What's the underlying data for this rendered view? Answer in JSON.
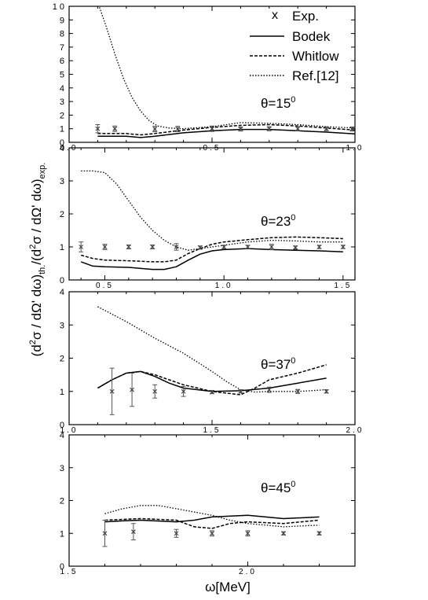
{
  "figure": {
    "ylabel": "(d²σ / dΩ′ dω)th. /(d²σ / dΩ′ dω)exp.",
    "ylabel_parts": {
      "open": "(d",
      "sup1": "2",
      "mid1": "σ / dΩ' dω)",
      "sub1": "th.",
      "mid2": "/(d",
      "sup2": "2",
      "mid3": "σ / dΩ' dω)",
      "sub2": "exp."
    },
    "xlabel": "ω[MeV]"
  },
  "legend": {
    "items": [
      {
        "label": "Exp.",
        "marker": "x",
        "style": "marker"
      },
      {
        "label": "Bodek",
        "style": "solid"
      },
      {
        "label": "Whitlow",
        "style": "dashed"
      },
      {
        "label": "Ref.[12]",
        "style": "dotted"
      }
    ]
  },
  "chart_data": [
    {
      "type": "line",
      "panel_label": "θ=15",
      "panel_label_sup": "0",
      "xlim": [
        0.0,
        1.0
      ],
      "ylim": [
        0,
        10
      ],
      "xticks": [
        0.0,
        0.5,
        1.0
      ],
      "xtick_labels": [
        "0.0",
        "0.5",
        "1.0"
      ],
      "yticks": [
        0,
        1,
        2,
        3,
        4,
        5,
        6,
        7,
        8,
        9,
        10
      ],
      "ytick_labels": [
        "0",
        "1",
        "2",
        "3",
        "4",
        "5",
        "6",
        "7",
        "8",
        "9",
        "1 0"
      ],
      "exp": {
        "x": [
          0.1,
          0.16,
          0.3,
          0.38,
          0.5,
          0.6,
          0.7,
          0.8,
          0.9,
          0.99
        ],
        "y": [
          1.0,
          1.0,
          0.98,
          0.98,
          1.0,
          0.98,
          1.0,
          1.0,
          1.0,
          0.98
        ],
        "err": [
          0.3,
          0.2,
          0.2,
          0.2,
          0.2,
          0.15,
          0.15,
          0.15,
          0.15,
          0.15
        ]
      },
      "series": [
        {
          "name": "Bodek",
          "style": "solid",
          "x": [
            0.1,
            0.2,
            0.25,
            0.3,
            0.4,
            0.5,
            0.6,
            0.7,
            0.8,
            0.9,
            1.0
          ],
          "y": [
            0.45,
            0.45,
            0.35,
            0.45,
            0.7,
            0.85,
            0.95,
            0.95,
            0.85,
            0.75,
            0.62
          ]
        },
        {
          "name": "Whitlow",
          "style": "dashed",
          "x": [
            0.1,
            0.2,
            0.25,
            0.3,
            0.4,
            0.5,
            0.6,
            0.7,
            0.8,
            0.9,
            1.0
          ],
          "y": [
            0.65,
            0.65,
            0.55,
            0.65,
            0.9,
            1.1,
            1.25,
            1.3,
            1.2,
            1.05,
            0.9
          ]
        },
        {
          "name": "Ref.[12]",
          "style": "dotted",
          "x": [
            0.1,
            0.13,
            0.16,
            0.19,
            0.22,
            0.25,
            0.28,
            0.31,
            0.35,
            0.4,
            0.5,
            0.6,
            0.7,
            0.8,
            0.9,
            1.0
          ],
          "y": [
            10.3,
            8.5,
            6.5,
            4.7,
            3.3,
            2.3,
            1.6,
            1.2,
            1.05,
            1.0,
            1.15,
            1.45,
            1.4,
            1.3,
            1.15,
            1.05
          ]
        }
      ]
    },
    {
      "type": "line",
      "panel_label": "θ=23",
      "panel_label_sup": "0",
      "xlim": [
        0.35,
        1.55
      ],
      "ylim": [
        0,
        4
      ],
      "xticks": [
        0.5,
        1.0,
        1.5
      ],
      "xtick_labels": [
        "0.5",
        "1.0",
        "1.5"
      ],
      "yticks": [
        0,
        1,
        2,
        3,
        4
      ],
      "ytick_labels": [
        "0",
        "1",
        "2",
        "3",
        "4"
      ],
      "exp": {
        "x": [
          0.4,
          0.5,
          0.6,
          0.7,
          0.8,
          0.9,
          1.0,
          1.1,
          1.2,
          1.3,
          1.4,
          1.5
        ],
        "y": [
          1.0,
          1.0,
          1.0,
          1.0,
          1.0,
          0.98,
          1.0,
          1.0,
          1.0,
          0.98,
          1.0,
          1.0
        ],
        "err": [
          0.15,
          0.08,
          0.06,
          0.06,
          0.1,
          0.05,
          0.05,
          0.05,
          0.08,
          0.05,
          0.05,
          0.05
        ]
      },
      "series": [
        {
          "name": "Bodek",
          "style": "solid",
          "x": [
            0.4,
            0.45,
            0.5,
            0.6,
            0.7,
            0.75,
            0.8,
            0.85,
            0.9,
            0.95,
            1.0,
            1.1,
            1.2,
            1.3,
            1.4,
            1.5
          ],
          "y": [
            0.55,
            0.42,
            0.4,
            0.38,
            0.32,
            0.32,
            0.4,
            0.6,
            0.78,
            0.88,
            0.92,
            0.95,
            0.92,
            0.9,
            0.88,
            0.85
          ]
        },
        {
          "name": "Whitlow",
          "style": "dashed",
          "x": [
            0.4,
            0.45,
            0.5,
            0.6,
            0.7,
            0.75,
            0.8,
            0.85,
            0.9,
            0.95,
            1.0,
            1.1,
            1.2,
            1.3,
            1.4,
            1.5
          ],
          "y": [
            0.75,
            0.65,
            0.6,
            0.58,
            0.55,
            0.55,
            0.6,
            0.8,
            0.95,
            1.08,
            1.15,
            1.22,
            1.28,
            1.3,
            1.28,
            1.25
          ]
        },
        {
          "name": "Ref.[12]",
          "style": "dotted",
          "x": [
            0.4,
            0.45,
            0.5,
            0.55,
            0.6,
            0.65,
            0.7,
            0.75,
            0.8,
            0.85,
            0.9,
            1.0,
            1.1,
            1.2,
            1.3,
            1.4,
            1.5
          ],
          "y": [
            3.3,
            3.3,
            3.25,
            2.9,
            2.4,
            1.9,
            1.5,
            1.2,
            1.0,
            0.9,
            0.95,
            1.05,
            1.15,
            1.2,
            1.18,
            1.15,
            1.15
          ]
        }
      ]
    },
    {
      "type": "line",
      "panel_label": "θ=37",
      "panel_label_sup": "0",
      "xlim": [
        1.0,
        2.0
      ],
      "ylim": [
        0,
        4
      ],
      "xticks": [
        1.0,
        1.5,
        2.0
      ],
      "xtick_labels": [
        "1.0",
        "1.5",
        "2.0"
      ],
      "yticks": [
        0,
        1,
        2,
        3,
        4
      ],
      "ytick_labels": [
        "0",
        "1",
        "2",
        "3",
        "4"
      ],
      "exp": {
        "x": [
          1.15,
          1.22,
          1.3,
          1.4,
          1.5,
          1.6,
          1.7,
          1.8,
          1.9
        ],
        "y": [
          1.0,
          1.05,
          1.0,
          1.0,
          0.98,
          1.0,
          1.05,
          1.0,
          1.0
        ],
        "err": [
          0.7,
          0.5,
          0.2,
          0.15,
          0.05,
          0.05,
          0.08,
          0.06,
          0.05
        ]
      },
      "series": [
        {
          "name": "Bodek",
          "style": "solid",
          "x": [
            1.1,
            1.15,
            1.2,
            1.25,
            1.3,
            1.35,
            1.4,
            1.5,
            1.6,
            1.7,
            1.8,
            1.9
          ],
          "y": [
            1.1,
            1.35,
            1.55,
            1.6,
            1.45,
            1.25,
            1.1,
            1.0,
            1.02,
            1.1,
            1.25,
            1.4
          ]
        },
        {
          "name": "Whitlow",
          "style": "dashed",
          "x": [
            1.1,
            1.15,
            1.2,
            1.25,
            1.3,
            1.35,
            1.4,
            1.5,
            1.6,
            1.65,
            1.7,
            1.8,
            1.9
          ],
          "y": [
            1.1,
            1.35,
            1.55,
            1.6,
            1.5,
            1.35,
            1.2,
            1.0,
            0.9,
            1.1,
            1.35,
            1.55,
            1.8
          ]
        },
        {
          "name": "Ref.[12]",
          "style": "dotted",
          "x": [
            1.1,
            1.2,
            1.3,
            1.4,
            1.5,
            1.55,
            1.6,
            1.65,
            1.7,
            1.8,
            1.9
          ],
          "y": [
            3.55,
            3.1,
            2.6,
            2.15,
            1.6,
            1.3,
            1.05,
            0.98,
            1.0,
            1.0,
            1.05
          ]
        }
      ]
    },
    {
      "type": "line",
      "panel_label": "θ=45",
      "panel_label_sup": "0",
      "xlim": [
        1.5,
        2.3
      ],
      "ylim": [
        0,
        4
      ],
      "xticks": [
        1.5,
        2.0
      ],
      "xtick_labels": [
        "1.5",
        "2.0"
      ],
      "yticks": [
        0,
        1,
        2,
        3,
        4
      ],
      "ytick_labels": [
        "0",
        "1",
        "2",
        "3",
        "4"
      ],
      "exp": {
        "x": [
          1.6,
          1.68,
          1.8,
          1.9,
          2.0,
          2.1,
          2.2
        ],
        "y": [
          1.0,
          1.05,
          1.0,
          1.0,
          1.0,
          1.0,
          1.0
        ],
        "err": [
          0.4,
          0.25,
          0.12,
          0.08,
          0.08,
          0.05,
          0.05
        ]
      },
      "series": [
        {
          "name": "Bodek",
          "style": "solid",
          "x": [
            1.6,
            1.65,
            1.7,
            1.8,
            1.85,
            1.9,
            2.0,
            2.05,
            2.1,
            2.2
          ],
          "y": [
            1.35,
            1.38,
            1.4,
            1.35,
            1.4,
            1.5,
            1.55,
            1.5,
            1.45,
            1.5
          ]
        },
        {
          "name": "Whitlow",
          "style": "dashed",
          "x": [
            1.6,
            1.7,
            1.8,
            1.85,
            1.9,
            1.95,
            2.0,
            2.1,
            2.2
          ],
          "y": [
            1.4,
            1.45,
            1.4,
            1.2,
            1.15,
            1.3,
            1.35,
            1.3,
            1.4
          ]
        },
        {
          "name": "Ref.[12]",
          "style": "dotted",
          "x": [
            1.6,
            1.65,
            1.7,
            1.75,
            1.8,
            1.9,
            1.95,
            2.0,
            2.1,
            2.2
          ],
          "y": [
            1.6,
            1.75,
            1.85,
            1.85,
            1.75,
            1.55,
            1.4,
            1.3,
            1.2,
            1.25
          ]
        }
      ]
    }
  ]
}
